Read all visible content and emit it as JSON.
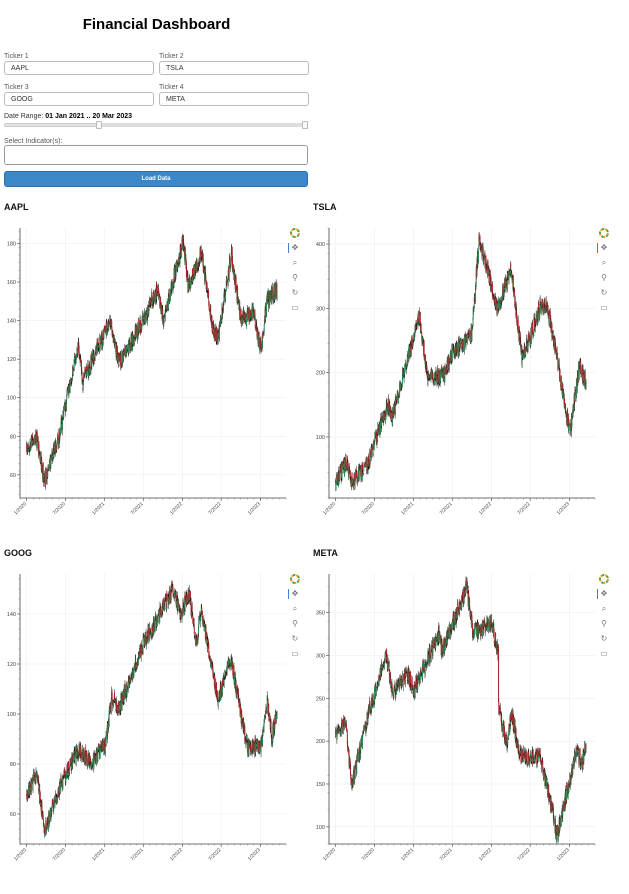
{
  "header": {
    "title": "Financial Dashboard"
  },
  "form": {
    "ticker1": {
      "label": "Ticker 1",
      "value": "AAPL"
    },
    "ticker2": {
      "label": "Ticker 2",
      "value": "TSLA"
    },
    "ticker3": {
      "label": "Ticker 3",
      "value": "GOOG"
    },
    "ticker4": {
      "label": "Ticker 4",
      "value": "META"
    },
    "date_range": {
      "label": "Date Range:",
      "value": "01 Jan 2021 .. 20 Mar 2023",
      "start_fraction": 0.31,
      "end_fraction": 1.0
    },
    "indicators": {
      "label": "Select Indicator(s):",
      "value": ""
    },
    "load_button": "Load Data"
  },
  "toolbar": {
    "icons": [
      "bokeh-logo-icon",
      "pan-icon",
      "box-zoom-icon",
      "wheel-zoom-icon",
      "reset-icon",
      "save-icon"
    ]
  },
  "colors": {
    "up": "#2e8b57",
    "down": "#b22222",
    "wick": "#111111",
    "button": "#3b87c9"
  },
  "chart_data": [
    {
      "type": "candlestick",
      "title": "AAPL",
      "x_ticks": [
        "1/2020",
        "7/2020",
        "1/2021",
        "7/2021",
        "1/2022",
        "7/2022",
        "1/2023"
      ],
      "y_ticks": [
        60,
        80,
        100,
        120,
        140,
        160,
        180
      ],
      "ylim": [
        48,
        188
      ],
      "xlim": [
        "2019-12-01",
        "2023-05-01"
      ],
      "trend": [
        [
          "2020-01-01",
          74
        ],
        [
          "2020-02-15",
          80
        ],
        [
          "2020-03-23",
          57
        ],
        [
          "2020-06-01",
          80
        ],
        [
          "2020-08-31",
          128
        ],
        [
          "2020-09-20",
          108
        ],
        [
          "2021-01-25",
          140
        ],
        [
          "2021-03-08",
          118
        ],
        [
          "2021-07-01",
          140
        ],
        [
          "2021-09-07",
          156
        ],
        [
          "2021-10-05",
          140
        ],
        [
          "2022-01-03",
          182
        ],
        [
          "2022-01-27",
          158
        ],
        [
          "2022-03-30",
          175
        ],
        [
          "2022-05-20",
          138
        ],
        [
          "2022-06-16",
          130
        ],
        [
          "2022-08-17",
          174
        ],
        [
          "2022-10-01",
          140
        ],
        [
          "2022-11-28",
          145
        ],
        [
          "2023-01-03",
          125
        ],
        [
          "2023-02-01",
          150
        ],
        [
          "2023-03-20",
          157
        ]
      ]
    },
    {
      "type": "candlestick",
      "title": "TSLA",
      "x_ticks": [
        "1/2020",
        "7/2020",
        "1/2021",
        "7/2021",
        "1/2022",
        "7/2022",
        "1/2023"
      ],
      "y_ticks": [
        100,
        200,
        300,
        400
      ],
      "ylim": [
        5,
        425
      ],
      "xlim": [
        "2019-12-01",
        "2023-05-01"
      ],
      "trend": [
        [
          "2020-01-01",
          29
        ],
        [
          "2020-02-19",
          60
        ],
        [
          "2020-03-18",
          28
        ],
        [
          "2020-06-01",
          60
        ],
        [
          "2020-08-31",
          150
        ],
        [
          "2020-09-22",
          130
        ],
        [
          "2021-01-26",
          290
        ],
        [
          "2021-03-08",
          190
        ],
        [
          "2021-05-20",
          195
        ],
        [
          "2021-07-01",
          230
        ],
        [
          "2021-09-30",
          260
        ],
        [
          "2021-11-04",
          410
        ],
        [
          "2022-01-27",
          300
        ],
        [
          "2022-04-04",
          360
        ],
        [
          "2022-05-24",
          220
        ],
        [
          "2022-08-16",
          300
        ],
        [
          "2022-09-21",
          300
        ],
        [
          "2022-11-01",
          230
        ],
        [
          "2023-01-03",
          105
        ],
        [
          "2023-02-16",
          210
        ],
        [
          "2023-03-20",
          185
        ]
      ]
    },
    {
      "type": "candlestick",
      "title": "GOOG",
      "x_ticks": [
        "1/2020",
        "7/2020",
        "1/2021",
        "7/2021",
        "1/2022",
        "7/2022",
        "1/2023"
      ],
      "y_ticks": [
        60,
        80,
        100,
        120,
        140
      ],
      "ylim": [
        48,
        156
      ],
      "xlim": [
        "2019-12-01",
        "2023-05-01"
      ],
      "trend": [
        [
          "2020-01-01",
          68
        ],
        [
          "2020-02-19",
          76
        ],
        [
          "2020-03-23",
          53
        ],
        [
          "2020-06-01",
          70
        ],
        [
          "2020-09-02",
          86
        ],
        [
          "2020-10-30",
          80
        ],
        [
          "2021-01-04",
          88
        ],
        [
          "2021-02-03",
          106
        ],
        [
          "2021-03-08",
          102
        ],
        [
          "2021-07-01",
          128
        ],
        [
          "2021-11-19",
          150
        ],
        [
          "2021-12-20",
          140
        ],
        [
          "2022-02-01",
          148
        ],
        [
          "2022-03-07",
          128
        ],
        [
          "2022-03-29",
          142
        ],
        [
          "2022-06-16",
          106
        ],
        [
          "2022-08-16",
          122
        ],
        [
          "2022-10-01",
          100
        ],
        [
          "2022-11-04",
          86
        ],
        [
          "2023-01-05",
          88
        ],
        [
          "2023-02-03",
          105
        ],
        [
          "2023-02-24",
          90
        ],
        [
          "2023-03-20",
          102
        ]
      ]
    },
    {
      "type": "candlestick",
      "title": "META",
      "x_ticks": [
        "1/2020",
        "7/2020",
        "1/2021",
        "7/2021",
        "1/2022",
        "7/2022",
        "1/2023"
      ],
      "y_ticks": [
        100,
        150,
        200,
        250,
        300,
        350
      ],
      "ylim": [
        80,
        395
      ],
      "xlim": [
        "2019-12-01",
        "2023-05-01"
      ],
      "trend": [
        [
          "2020-01-01",
          210
        ],
        [
          "2020-02-18",
          218
        ],
        [
          "2020-03-16",
          150
        ],
        [
          "2020-06-01",
          230
        ],
        [
          "2020-08-25",
          300
        ],
        [
          "2020-09-25",
          255
        ],
        [
          "2020-11-30",
          280
        ],
        [
          "2021-01-04",
          260
        ],
        [
          "2021-04-29",
          325
        ],
        [
          "2021-05-13",
          305
        ],
        [
          "2021-09-07",
          380
        ],
        [
          "2021-10-05",
          326
        ],
        [
          "2021-12-31",
          338
        ],
        [
          "2022-02-02",
          300
        ],
        [
          "2022-02-03",
          240
        ],
        [
          "2022-03-15",
          195
        ],
        [
          "2022-04-04",
          232
        ],
        [
          "2022-05-12",
          185
        ],
        [
          "2022-08-16",
          180
        ],
        [
          "2022-09-30",
          135
        ],
        [
          "2022-11-04",
          90
        ],
        [
          "2022-12-01",
          120
        ],
        [
          "2023-02-02",
          188
        ],
        [
          "2023-03-01",
          175
        ],
        [
          "2023-03-20",
          200
        ]
      ]
    }
  ]
}
